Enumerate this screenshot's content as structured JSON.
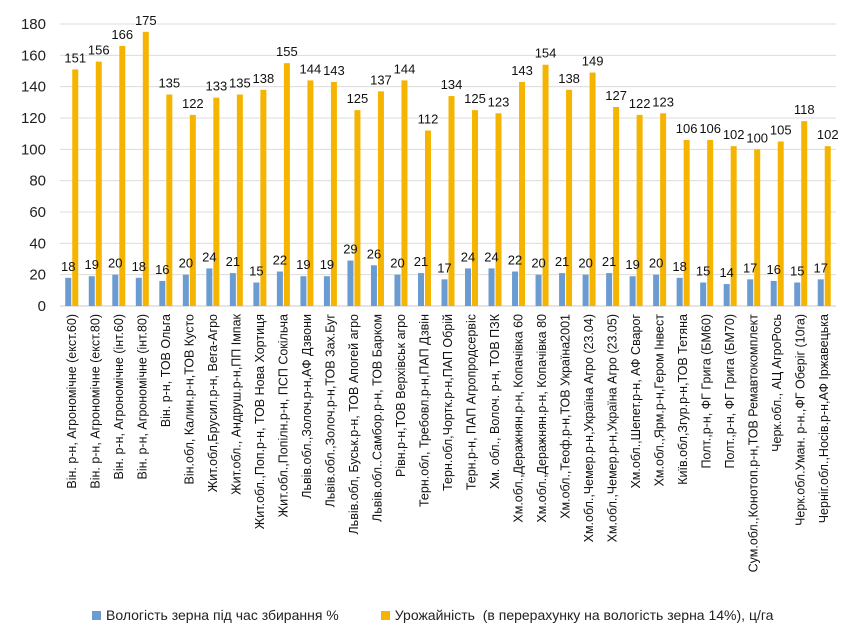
{
  "chart_data": {
    "type": "bar",
    "title": "",
    "xlabel": "",
    "ylabel": "",
    "ylim": [
      0,
      180
    ],
    "yticks": [
      0,
      20,
      40,
      60,
      80,
      100,
      120,
      140,
      160,
      180
    ],
    "grid": true,
    "legend_position": "bottom",
    "categories": [
      "Він. р-н, Агрономічне (екст.60)",
      "Він. р-н, Агрономічне (екст.80)",
      "Він. р-н, Агрономічне (інт.60)",
      "Він. р-н, Агрономічне (інт.80)",
      "Він. р-н, ТОВ Ольга",
      "Він.обл, Калин.р-н,ТОВ Кусто",
      "Жит.обл,Брусил.р-н, Вега-Агро",
      "Жит.обл., Андруш.р-н,ПП Імпак",
      "Жит.обл.,Поп.р-н, ТОВ Нова Хортиця",
      "Жит.обл.,Попілн.р-н, ПСП Сокільча",
      "Львів.обл.,Золоч.р-н,АФ Дзвони",
      "Львів.обл.,Золоч.р-н,ТОВ Зах.Буг",
      "Львів.обл, Буськ.р-н, ТОВ Апогей агро",
      "Львів.обл..Самбор.р-н, ТОВ Барком",
      "Рівн.р-н,ТОВ Верхівськ агро",
      "Терн.обл, Требовл.р-н,ПАП Дзвін",
      "Терн.обл,Чортк.р-н,ПАП Обрій",
      "Терн.р-н, ПАП Агропродсервіс",
      "Хм. обл., Волоч. р-н, ТОВ ПЗК",
      "Хм.обл.,Деражнян.р-н, Копачівка 60",
      "Хм.обл.,Деражнян.р-н, Копачівка 80",
      "Хм.обл.,Теоф.р-н,ТОВ Україна2001",
      "Хм.обл.,Чемер.р-н,Україна Агро (23.04)",
      "Хм.обл.,Чемер.р-н,Україна Агро (23.05)",
      "Хм.обл.,Шепет.р-н, АФ Сварог",
      "Хм.обл.,Ярм.р-н,Гером Інвест",
      "Київ.обл,Згур.р-н,ТОВ Тетяна",
      "Полт.,р-н, ФГ Грига (БМ60)",
      "Полт.,р-н, ФГ Грига (БМ70)",
      "Сум.обл.,Конотоп.р-н,ТОВ Ремавтокомплект",
      "Черк.обл., АЦ АгроРось",
      "Черк.обл.Уман. р-н.,ФГ Оберіг (10га)",
      "Черніг.обл.,Носів.р-н,АФ Іржавецька"
    ],
    "series": [
      {
        "name": "Вологість зерна під час збирання %",
        "color": "#6a9bd1",
        "values": [
          18,
          19,
          20,
          18,
          16,
          20,
          24,
          21,
          15,
          22,
          19,
          19,
          29,
          26,
          20,
          21,
          17,
          24,
          24,
          22,
          20,
          21,
          20,
          21,
          19,
          20,
          18,
          15,
          14,
          17,
          16,
          15,
          17
        ]
      },
      {
        "name": "Урожайність  (в перерахунку на вологість зерна 14%), ц/га",
        "color": "#f5b400",
        "values": [
          151,
          156,
          166,
          175,
          135,
          122,
          133,
          135,
          138,
          155,
          144,
          143,
          125,
          137,
          144,
          112,
          134,
          125,
          123,
          143,
          154,
          138,
          149,
          127,
          122,
          123,
          106,
          106,
          102,
          100,
          105,
          118,
          102
        ]
      }
    ]
  }
}
